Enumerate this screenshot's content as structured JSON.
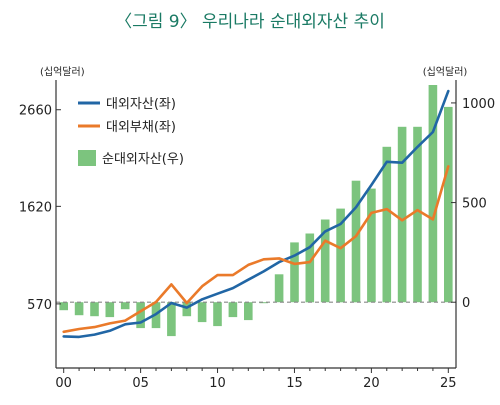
{
  "chart_data": {
    "type": "bar+line",
    "title": "〈그림 9〉 우리나라 순대외자산 추이",
    "left_unit": "(십억달러)",
    "right_unit": "(십억달러)",
    "x_ticks": [
      "00",
      "05",
      "10",
      "15",
      "20",
      "25"
    ],
    "y_left_ticks": [
      "2660",
      "1620",
      "570"
    ],
    "y_right_ticks": [
      "1000",
      "500",
      "0"
    ],
    "y_left_range": [
      -120,
      2980
    ],
    "y_right_range": [
      -330,
      1115
    ],
    "years": [
      2000,
      2001,
      2002,
      2003,
      2004,
      2005,
      2006,
      2007,
      2008,
      2009,
      2010,
      2011,
      2012,
      2013,
      2014,
      2015,
      2016,
      2017,
      2018,
      2019,
      2020,
      2021,
      2022,
      2023,
      2024,
      2025
    ],
    "legend": {
      "assets": "대외자산(좌)",
      "liabilities": "대외부채(좌)",
      "net": "순대외자산(우)"
    },
    "series": [
      {
        "name": "대외자산(좌)",
        "axis": "left",
        "color": "#2166a5",
        "values": [
          220,
          215,
          240,
          280,
          350,
          370,
          460,
          580,
          530,
          620,
          680,
          740,
          830,
          920,
          1020,
          1090,
          1180,
          1350,
          1430,
          1610,
          1850,
          2100,
          2090,
          2260,
          2420,
          2860
        ]
      },
      {
        "name": "대외부채(좌)",
        "axis": "left",
        "color": "#ea7a2a",
        "values": [
          270,
          300,
          320,
          360,
          390,
          490,
          590,
          780,
          580,
          760,
          880,
          880,
          990,
          1050,
          1060,
          1000,
          1020,
          1250,
          1170,
          1300,
          1550,
          1590,
          1470,
          1580,
          1480,
          2050
        ]
      },
      {
        "name": "순대외자산(우)",
        "axis": "right",
        "color": "#7cc47e",
        "values": [
          -40,
          -65,
          -70,
          -75,
          -35,
          -130,
          -130,
          -170,
          -70,
          -100,
          -120,
          -75,
          -90,
          -5,
          140,
          300,
          345,
          415,
          470,
          610,
          570,
          780,
          880,
          880,
          1090,
          980
        ]
      }
    ],
    "zero_line": true
  }
}
